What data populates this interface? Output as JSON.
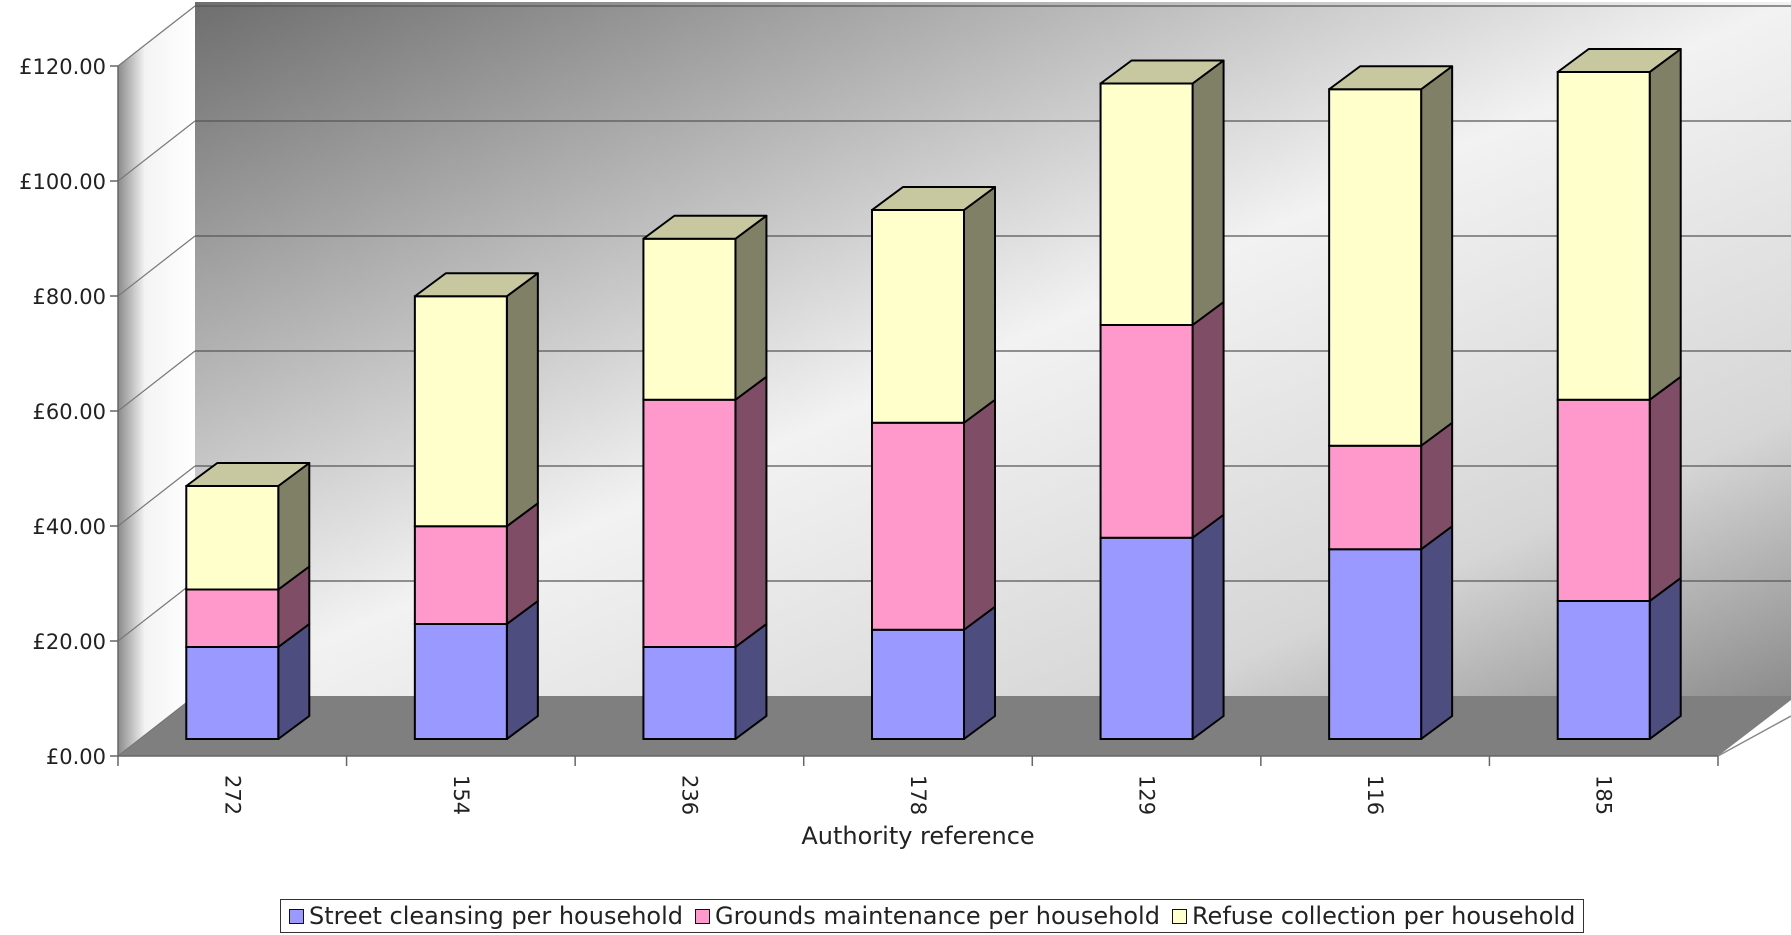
{
  "chart_data": {
    "type": "bar",
    "stacked": true,
    "style": "3d",
    "categories": [
      "272",
      "154",
      "236",
      "178",
      "129",
      "116",
      "185"
    ],
    "series": [
      {
        "name": "Street cleansing per household",
        "color": "#9999ff",
        "side_color": "#4d4d80",
        "values": [
          16,
          20,
          16,
          19,
          35,
          33,
          24
        ]
      },
      {
        "name": "Grounds maintenance per household",
        "color": "#ff99cc",
        "side_color": "#804d66",
        "values": [
          10,
          17,
          43,
          36,
          37,
          18,
          35
        ]
      },
      {
        "name": "Refuse collection per household",
        "color": "#ffffcc",
        "side_color": "#808066",
        "top_color": "#c8c8a0",
        "values": [
          18,
          40,
          28,
          37,
          42,
          62,
          57
        ]
      }
    ],
    "title": "",
    "xlabel": "Authority reference",
    "ylabel": "",
    "ylim": [
      0,
      120
    ],
    "yticks": [
      "£0.00",
      "£20.00",
      "£40.00",
      "£60.00",
      "£80.00",
      "£100.00",
      "£120.00"
    ],
    "grid": true,
    "legend_position": "bottom"
  }
}
